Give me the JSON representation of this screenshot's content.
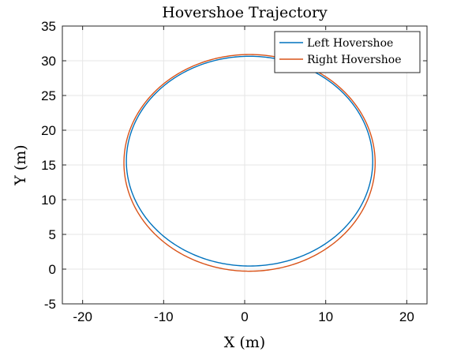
{
  "chart_data": {
    "type": "line",
    "title": "Hovershoe Trajectory",
    "xlabel": "X (m)",
    "ylabel": "Y (m)",
    "xlim": [
      -22.5,
      22.5
    ],
    "ylim": [
      -5,
      35
    ],
    "xticks": [
      -20,
      -10,
      0,
      10,
      20
    ],
    "xtick_labels": [
      "-20",
      "-10",
      "0",
      "10",
      "20"
    ],
    "yticks": [
      -5,
      0,
      5,
      10,
      15,
      20,
      25,
      30,
      35
    ],
    "ytick_labels": [
      "-5",
      "0",
      "5",
      "10",
      "15",
      "20",
      "25",
      "30",
      "35"
    ],
    "grid": true,
    "legend_position": "top-right",
    "series": [
      {
        "name": "Left Hovershoe",
        "color": "#0072BD",
        "shape": "near-circular closed loop",
        "center": [
          0.6,
          15.55
        ],
        "radius_x": 15.2,
        "radius_y": 15.1,
        "start": [
          0.2,
          0.45
        ],
        "end": [
          0.2,
          0.45
        ]
      },
      {
        "name": "Right Hovershoe",
        "color": "#D95319",
        "shape": "near-circular closed loop",
        "center": [
          0.6,
          15.3
        ],
        "radius_x": 15.5,
        "radius_y": 15.6,
        "start": [
          0.2,
          -0.3
        ],
        "end": [
          0.2,
          -0.3
        ]
      }
    ]
  }
}
